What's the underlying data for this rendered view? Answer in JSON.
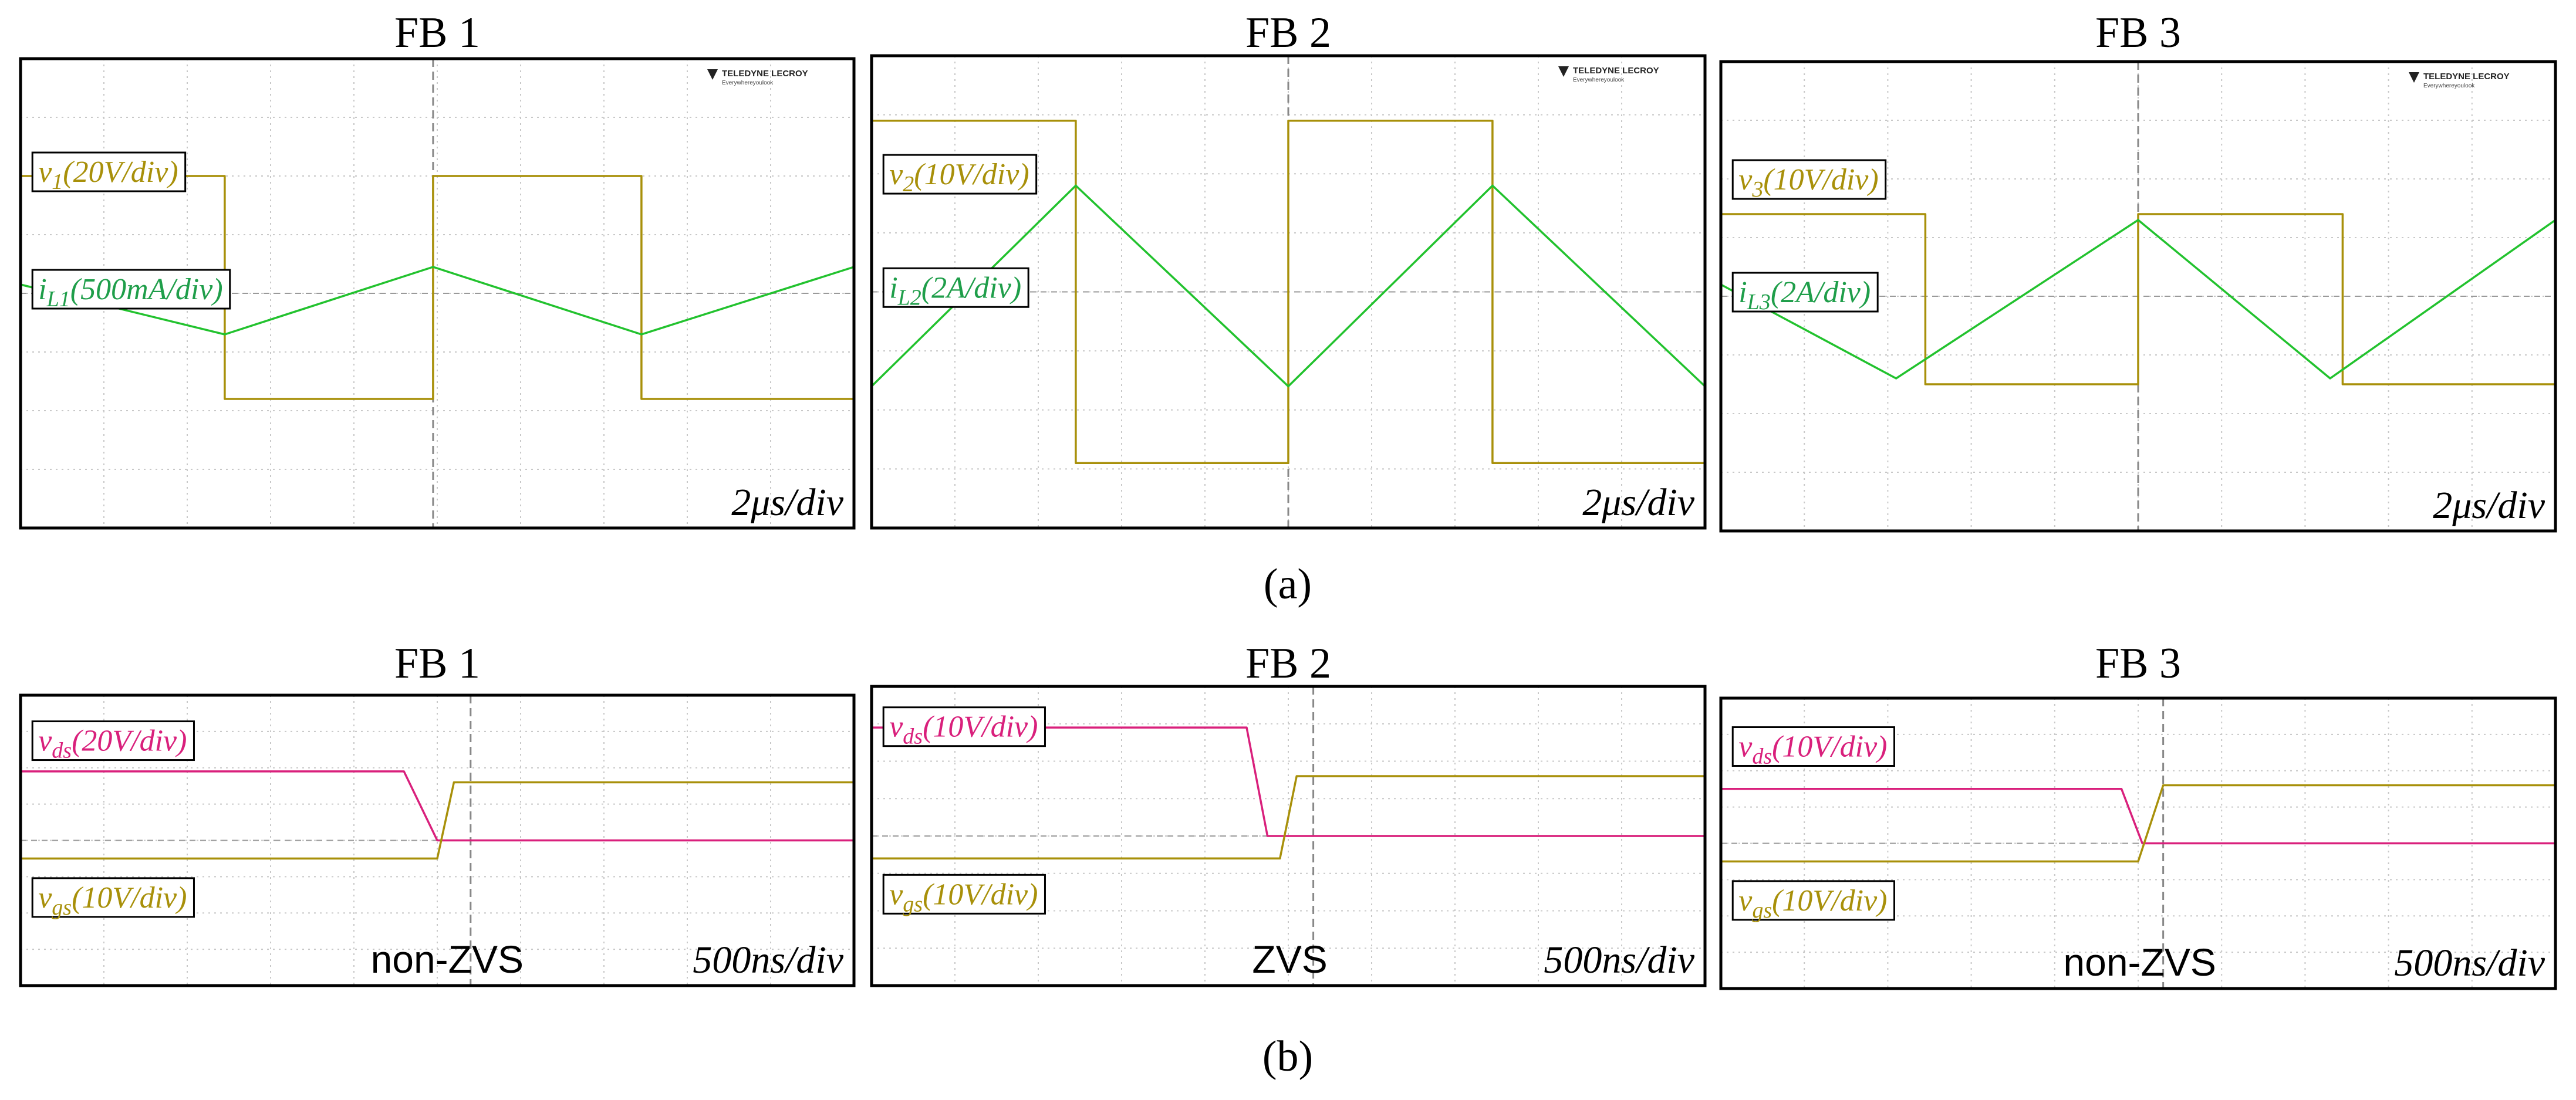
{
  "colors": {
    "voltage": "#a8900a",
    "current": "#22c22e",
    "current_label": "#1f9e4a",
    "vds": "#d9207c",
    "grid": "#c8c8c8",
    "frame": "#000000"
  },
  "captions": {
    "a": "(a)",
    "b": "(b)"
  },
  "logo": {
    "brand": "TELEDYNE LECROY",
    "tagline": "Everywhereyoulook"
  },
  "chart_data": [
    {
      "type": "line",
      "id": "a1",
      "title": "FB 1",
      "time_div": "2μs/div",
      "xlim": [
        0,
        10
      ],
      "ylim": [
        -4,
        4
      ],
      "trigger_x": 4.95,
      "labels": [
        {
          "base": "v",
          "sub": "1",
          "rest": "(20V/div)",
          "color": "voltage"
        },
        {
          "base": "i",
          "sub": "L1",
          "rest": "(500mA/div)",
          "color": "current_label"
        }
      ],
      "series": [
        {
          "name": "v1",
          "color": "voltage",
          "points": [
            [
              0,
              2
            ],
            [
              2.45,
              2
            ],
            [
              2.45,
              -1.8
            ],
            [
              4.95,
              -1.8
            ],
            [
              4.95,
              2
            ],
            [
              7.45,
              2
            ],
            [
              7.45,
              -1.8
            ],
            [
              10,
              -1.8
            ]
          ]
        },
        {
          "name": "iL1",
          "color": "current",
          "points": [
            [
              0,
              0.15
            ],
            [
              2.45,
              -0.7
            ],
            [
              4.95,
              0.45
            ],
            [
              7.45,
              -0.7
            ],
            [
              10,
              0.45
            ]
          ]
        }
      ]
    },
    {
      "type": "line",
      "id": "a2",
      "title": "FB 2",
      "time_div": "2μs/div",
      "xlim": [
        0,
        10
      ],
      "ylim": [
        -4,
        4
      ],
      "trigger_x": 5,
      "labels": [
        {
          "base": "v",
          "sub": "2",
          "rest": "(10V/div)",
          "color": "voltage"
        },
        {
          "base": "i",
          "sub": "L2",
          "rest": "(2A/div)",
          "color": "current_label"
        }
      ],
      "series": [
        {
          "name": "v2",
          "color": "voltage",
          "points": [
            [
              0,
              2.9
            ],
            [
              2.45,
              2.9
            ],
            [
              2.45,
              -2.9
            ],
            [
              5,
              -2.9
            ],
            [
              5,
              2.9
            ],
            [
              7.45,
              2.9
            ],
            [
              7.45,
              -2.9
            ],
            [
              10,
              -2.9
            ]
          ]
        },
        {
          "name": "iL2",
          "color": "current",
          "points": [
            [
              0,
              -1.6
            ],
            [
              2.45,
              1.8
            ],
            [
              5,
              -1.6
            ],
            [
              7.45,
              1.8
            ],
            [
              10,
              -1.6
            ]
          ]
        }
      ]
    },
    {
      "type": "line",
      "id": "a3",
      "title": "FB 3",
      "time_div": "2μs/div",
      "xlim": [
        0,
        10
      ],
      "ylim": [
        -4,
        4
      ],
      "trigger_x": 5,
      "labels": [
        {
          "base": "v",
          "sub": "3",
          "rest": "(10V/div)",
          "color": "voltage"
        },
        {
          "base": "i",
          "sub": "L3",
          "rest": "(2A/div)",
          "color": "current_label"
        }
      ],
      "series": [
        {
          "name": "v3",
          "color": "voltage",
          "points": [
            [
              0,
              1.4
            ],
            [
              2.45,
              1.4
            ],
            [
              2.45,
              -1.5
            ],
            [
              5,
              -1.5
            ],
            [
              5,
              1.4
            ],
            [
              7.45,
              1.4
            ],
            [
              7.45,
              -1.5
            ],
            [
              10,
              -1.5
            ]
          ]
        },
        {
          "name": "iL3",
          "color": "current",
          "points": [
            [
              0,
              0.2
            ],
            [
              2.1,
              -1.4
            ],
            [
              5,
              1.3
            ],
            [
              7.3,
              -1.4
            ],
            [
              10,
              1.3
            ]
          ]
        }
      ]
    },
    {
      "type": "line",
      "id": "b1",
      "title": "FB 1",
      "time_div": "500ns/div",
      "note": "non-ZVS",
      "xlim": [
        0,
        10
      ],
      "ylim": [
        -4,
        4
      ],
      "trigger_x": 5.4,
      "labels": [
        {
          "base": "v",
          "sub": "ds",
          "rest": "(20V/div)",
          "color": "vds"
        },
        {
          "base": "v",
          "sub": "gs",
          "rest": "(10V/div)",
          "color": "voltage"
        }
      ],
      "series": [
        {
          "name": "vds",
          "color": "vds",
          "points": [
            [
              0,
              1.9
            ],
            [
              4.6,
              1.9
            ],
            [
              5.0,
              0
            ],
            [
              10,
              0
            ]
          ]
        },
        {
          "name": "vgs",
          "color": "voltage",
          "points": [
            [
              0,
              -0.5
            ],
            [
              5.0,
              -0.5
            ],
            [
              5.2,
              1.6
            ],
            [
              10,
              1.6
            ]
          ]
        }
      ]
    },
    {
      "type": "line",
      "id": "b2",
      "title": "FB 2",
      "time_div": "500ns/div",
      "note": "ZVS",
      "xlim": [
        0,
        10
      ],
      "ylim": [
        -4,
        4
      ],
      "trigger_x": 5.3,
      "labels": [
        {
          "base": "v",
          "sub": "ds",
          "rest": "(10V/div)",
          "color": "vds"
        },
        {
          "base": "v",
          "sub": "gs",
          "rest": "(10V/div)",
          "color": "voltage"
        }
      ],
      "series": [
        {
          "name": "vds",
          "color": "vds",
          "points": [
            [
              0,
              2.9
            ],
            [
              4.5,
              2.9
            ],
            [
              4.75,
              0
            ],
            [
              10,
              0
            ]
          ]
        },
        {
          "name": "vgs",
          "color": "voltage",
          "points": [
            [
              0,
              -0.6
            ],
            [
              4.9,
              -0.6
            ],
            [
              5.1,
              1.6
            ],
            [
              10,
              1.6
            ]
          ]
        }
      ]
    },
    {
      "type": "line",
      "id": "b3",
      "title": "FB 3",
      "time_div": "500ns/div",
      "note": "non-ZVS",
      "xlim": [
        0,
        10
      ],
      "ylim": [
        -4,
        4
      ],
      "trigger_x": 5.3,
      "labels": [
        {
          "base": "v",
          "sub": "ds",
          "rest": "(10V/div)",
          "color": "vds"
        },
        {
          "base": "v",
          "sub": "gs",
          "rest": "(10V/div)",
          "color": "voltage"
        }
      ],
      "series": [
        {
          "name": "vds",
          "color": "vds",
          "points": [
            [
              0,
              1.5
            ],
            [
              4.8,
              1.5
            ],
            [
              5.05,
              0
            ],
            [
              10,
              0
            ]
          ]
        },
        {
          "name": "vgs",
          "color": "voltage",
          "points": [
            [
              0,
              -0.5
            ],
            [
              5.0,
              -0.5
            ],
            [
              5.3,
              1.6
            ],
            [
              10,
              1.6
            ]
          ]
        }
      ]
    }
  ]
}
